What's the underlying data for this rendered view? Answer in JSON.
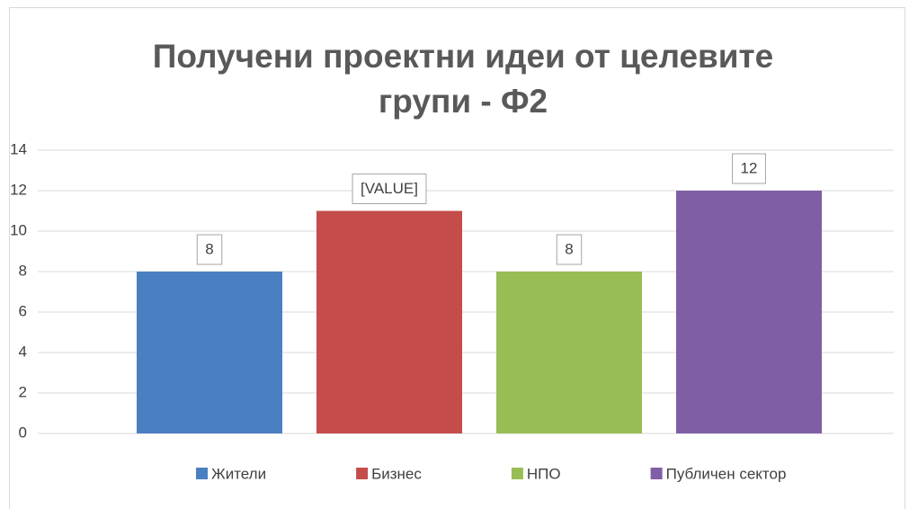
{
  "chart_data": {
    "type": "bar",
    "title": "Получени проектни идеи от целевите групи - Ф2",
    "categories": [
      null
    ],
    "series": [
      {
        "name": "Жители",
        "color": "#4a7fc1",
        "values": [
          8
        ],
        "value_labels": [
          "8"
        ]
      },
      {
        "name": "Бизнес",
        "color": "#c44c4a",
        "values": [
          11
        ],
        "value_labels": [
          "[VALUE]"
        ]
      },
      {
        "name": "НПО",
        "color": "#98bd55",
        "values": [
          8
        ],
        "value_labels": [
          "8"
        ]
      },
      {
        "name": "Публичен сектор",
        "color": "#7f5ea6",
        "values": [
          12
        ],
        "value_labels": [
          "12"
        ]
      }
    ],
    "ylim": [
      0,
      14
    ],
    "yticks": [
      0,
      2,
      4,
      6,
      8,
      10,
      12,
      14
    ],
    "grid": true,
    "legend": "bottom"
  }
}
